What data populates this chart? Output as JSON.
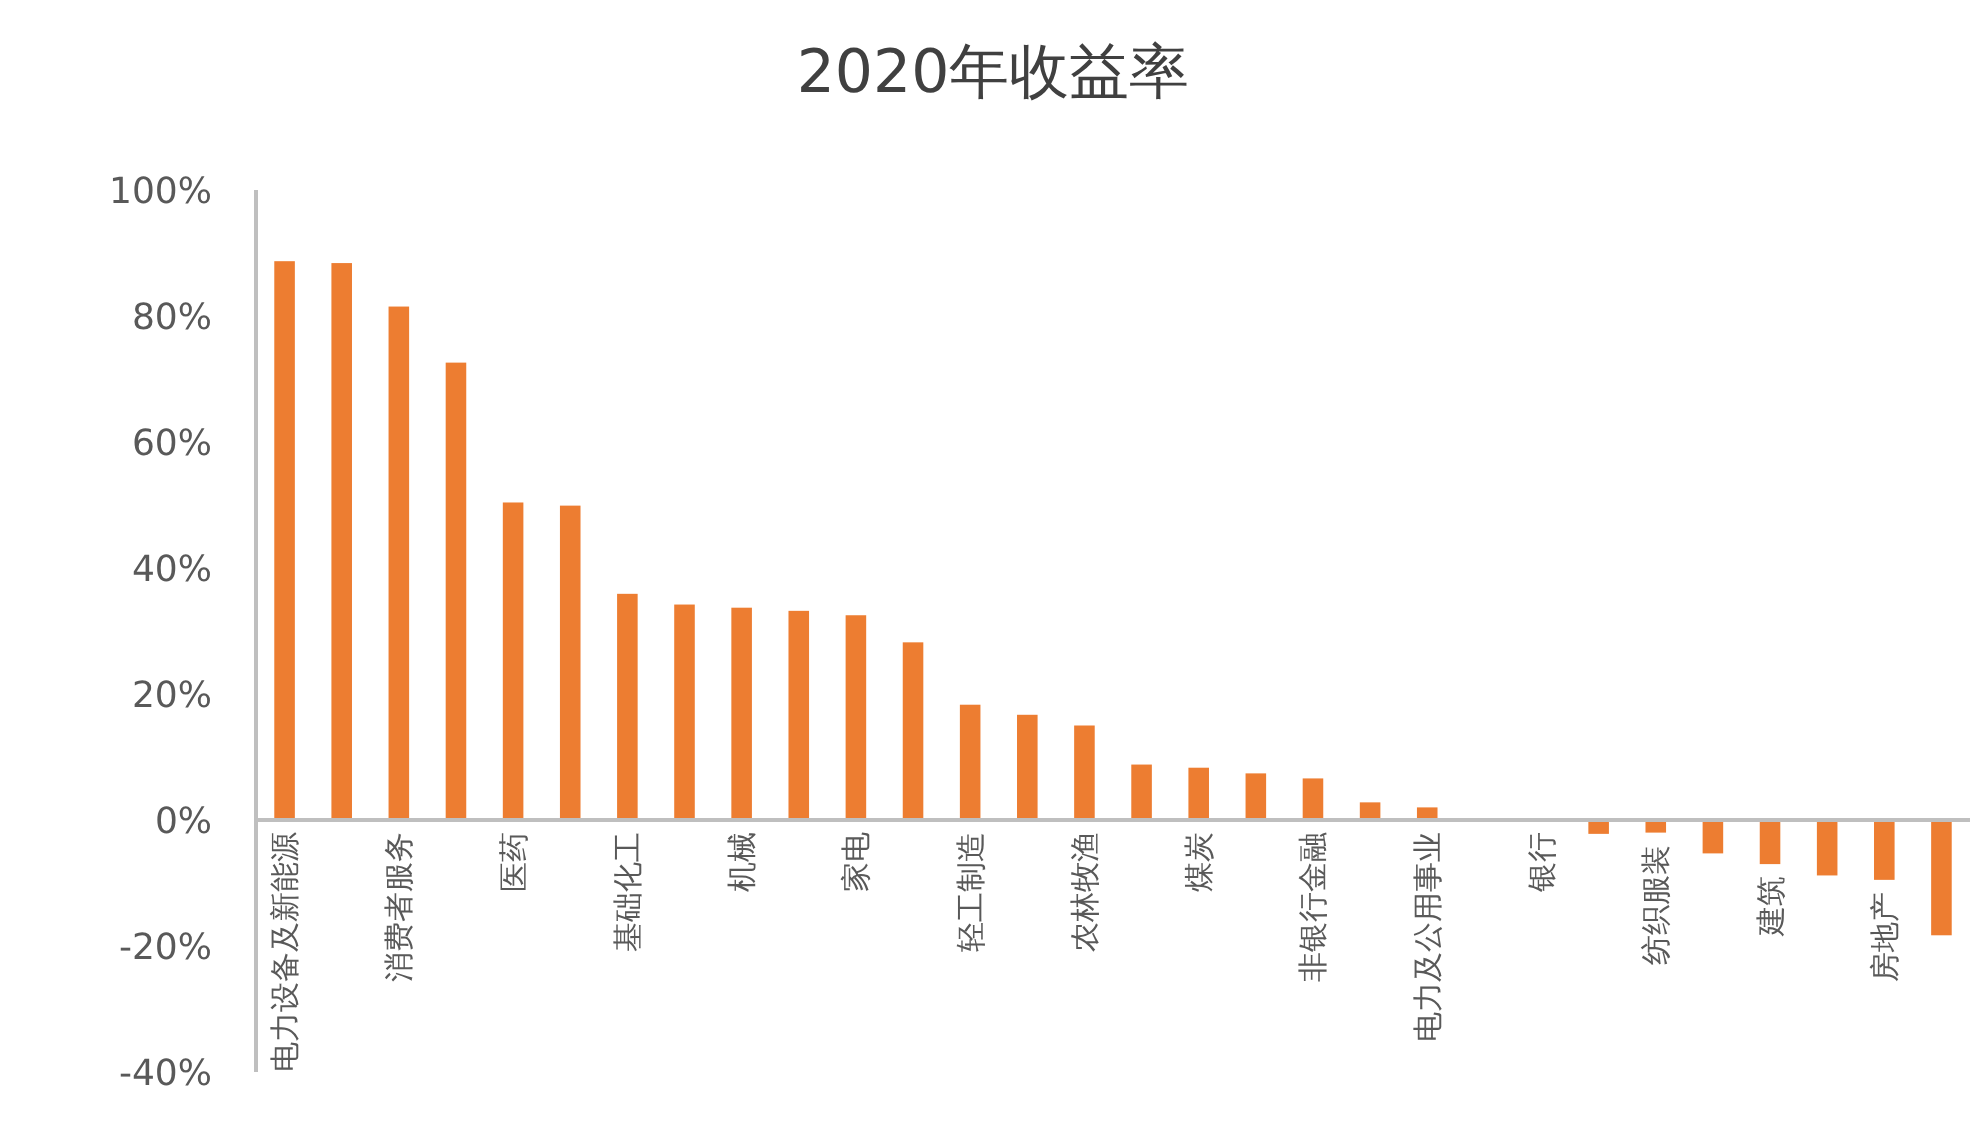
{
  "chart_data": {
    "type": "bar",
    "title": "2020年收益率",
    "categories": [
      "电力设备及新能源",
      null,
      "消费者服务",
      null,
      "医药",
      null,
      "基础化工",
      null,
      "机械",
      null,
      "家电",
      null,
      "轻工制造",
      null,
      "农林牧渔",
      null,
      "煤炭",
      null,
      "非银行金融",
      null,
      "电力及公用事业",
      null,
      "银行",
      null,
      "纺织服装",
      null,
      "建筑",
      null,
      "房地产",
      null
    ],
    "values": [
      88.7,
      88.4,
      81.5,
      72.6,
      50.4,
      49.9,
      35.9,
      34.2,
      33.7,
      33.2,
      32.5,
      28.2,
      18.3,
      16.7,
      15.0,
      8.8,
      8.3,
      7.4,
      6.6,
      2.8,
      2.0,
      0,
      0,
      -2.2,
      -2.0,
      -5.3,
      -7.0,
      -8.8,
      -9.5,
      -18.3
    ],
    "color": "#ed7d31",
    "ylim": [
      -40,
      100
    ],
    "yticks": [
      {
        "value": -40,
        "label": "-40%"
      },
      {
        "value": -20,
        "label": "-20%"
      },
      {
        "value": 0,
        "label": "0%"
      },
      {
        "value": 20,
        "label": "20%"
      },
      {
        "value": 40,
        "label": "40%"
      },
      {
        "value": 60,
        "label": "60%"
      },
      {
        "value": 80,
        "label": "80%"
      },
      {
        "value": 100,
        "label": "100%"
      }
    ],
    "grid": false
  }
}
